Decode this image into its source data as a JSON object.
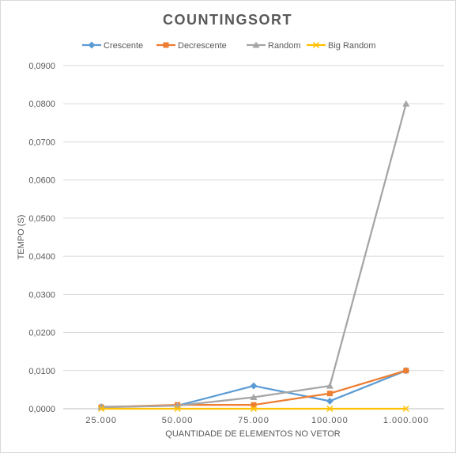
{
  "chart_data": {
    "type": "line",
    "title": "COUNTINGSORT",
    "xlabel": "QUANTIDADE DE ELEMENTOS NO VETOR",
    "ylabel": "TEMPO (S)",
    "categories": [
      "25.000",
      "50.000",
      "75.000",
      "100.000",
      "1.000.000"
    ],
    "ylim": [
      0,
      0.09
    ],
    "yticks": [
      0,
      0.01,
      0.02,
      0.03,
      0.04,
      0.05,
      0.06,
      0.07,
      0.08,
      0.09
    ],
    "ytick_labels": [
      "0,0000",
      "0,0100",
      "0,0200",
      "0,0300",
      "0,0400",
      "0,0500",
      "0,0600",
      "0,0700",
      "0,0800",
      "0,0900"
    ],
    "grid": "horizontal",
    "legend_position": "top",
    "series": [
      {
        "name": "Crescente",
        "values": [
          0.0005,
          0.0008,
          0.006,
          0.002,
          0.01
        ],
        "color": "#5B9BD5",
        "marker": "diamond"
      },
      {
        "name": "Decrescente",
        "values": [
          0.0004,
          0.001,
          0.001,
          0.004,
          0.01
        ],
        "color": "#ED7D31",
        "marker": "square"
      },
      {
        "name": "Random",
        "values": [
          0.0004,
          0.0008,
          0.003,
          0.006,
          0.08
        ],
        "color": "#A5A5A5",
        "marker": "triangle"
      },
      {
        "name": "Big Random",
        "values": [
          0.0,
          0.0,
          0.0,
          0.0,
          0.0
        ],
        "color": "#FFC000",
        "marker": "x"
      }
    ]
  }
}
